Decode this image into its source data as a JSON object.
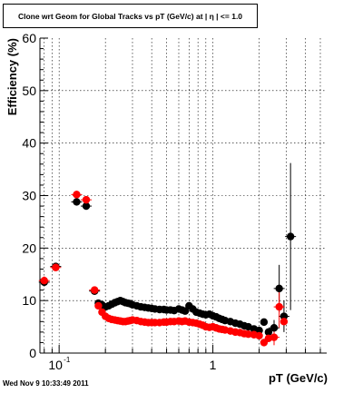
{
  "chart_data": {
    "type": "scatter",
    "title": "Clone wrt Geom for Global Tracks vs pT (GeV/c) at |  η | <= 1.0",
    "xlabel": "pT (GeV/c)",
    "ylabel": "Efficiency (%)",
    "xscale": "log",
    "xlim": [
      0.075,
      5.5
    ],
    "ylim": [
      0,
      60
    ],
    "yticks": [
      0,
      10,
      20,
      30,
      40,
      50,
      60
    ],
    "xtick_labels": [
      {
        "value": 0.1,
        "label": "10",
        "exp": "-1"
      },
      {
        "value": 1,
        "label": "1",
        "exp": ""
      }
    ],
    "grid": true,
    "series": [
      {
        "color": "#000000",
        "points": [
          [
            0.08,
            13.5
          ],
          [
            0.095,
            16.5
          ],
          [
            0.13,
            28.8
          ],
          [
            0.15,
            28.0
          ],
          [
            0.17,
            11.8
          ],
          [
            0.18,
            9.5
          ],
          [
            0.19,
            9.2
          ],
          [
            0.2,
            8.8
          ],
          [
            0.21,
            9.0
          ],
          [
            0.22,
            9.3
          ],
          [
            0.23,
            9.6
          ],
          [
            0.24,
            9.8
          ],
          [
            0.25,
            10.0
          ],
          [
            0.26,
            9.8
          ],
          [
            0.27,
            9.6
          ],
          [
            0.28,
            9.5
          ],
          [
            0.29,
            9.4
          ],
          [
            0.3,
            9.2
          ],
          [
            0.32,
            9.0
          ],
          [
            0.34,
            8.8
          ],
          [
            0.36,
            8.7
          ],
          [
            0.38,
            8.6
          ],
          [
            0.4,
            8.5
          ],
          [
            0.42,
            8.4
          ],
          [
            0.45,
            8.3
          ],
          [
            0.48,
            8.3
          ],
          [
            0.5,
            8.2
          ],
          [
            0.53,
            8.2
          ],
          [
            0.56,
            8.1
          ],
          [
            0.6,
            8.4
          ],
          [
            0.63,
            8.2
          ],
          [
            0.66,
            8.0
          ],
          [
            0.7,
            9.0
          ],
          [
            0.74,
            8.4
          ],
          [
            0.78,
            7.8
          ],
          [
            0.82,
            7.6
          ],
          [
            0.86,
            7.4
          ],
          [
            0.9,
            7.3
          ],
          [
            0.95,
            7.4
          ],
          [
            1.0,
            7.1
          ],
          [
            1.05,
            6.9
          ],
          [
            1.1,
            6.6
          ],
          [
            1.15,
            6.4
          ],
          [
            1.2,
            6.2
          ],
          [
            1.3,
            6.0
          ],
          [
            1.4,
            5.7
          ],
          [
            1.5,
            5.5
          ],
          [
            1.6,
            5.2
          ],
          [
            1.7,
            5.0
          ],
          [
            1.85,
            4.6
          ],
          [
            2.0,
            4.3
          ],
          [
            2.15,
            5.9
          ],
          [
            2.3,
            4.0
          ],
          [
            2.5,
            4.8
          ],
          [
            2.7,
            12.3
          ],
          [
            2.9,
            7.0
          ],
          [
            3.2,
            22.2
          ]
        ],
        "errors": [
          [
            0.08,
            0.8
          ],
          [
            0.095,
            0.6
          ],
          [
            0.13,
            0.7
          ],
          [
            0.15,
            0.7
          ],
          [
            0.17,
            0.6
          ],
          [
            2.5,
            1.5
          ],
          [
            2.7,
            4.5
          ],
          [
            2.9,
            3.0
          ],
          [
            3.2,
            14.0
          ]
        ]
      },
      {
        "color": "#ff0000",
        "points": [
          [
            0.08,
            13.8
          ],
          [
            0.095,
            16.3
          ],
          [
            0.13,
            30.2
          ],
          [
            0.15,
            29.2
          ],
          [
            0.17,
            12.0
          ],
          [
            0.18,
            9.0
          ],
          [
            0.19,
            7.8
          ],
          [
            0.2,
            7.0
          ],
          [
            0.21,
            6.6
          ],
          [
            0.22,
            6.4
          ],
          [
            0.23,
            6.3
          ],
          [
            0.24,
            6.2
          ],
          [
            0.25,
            6.1
          ],
          [
            0.26,
            6.0
          ],
          [
            0.27,
            6.0
          ],
          [
            0.28,
            6.1
          ],
          [
            0.29,
            6.2
          ],
          [
            0.3,
            6.3
          ],
          [
            0.32,
            6.2
          ],
          [
            0.34,
            6.0
          ],
          [
            0.36,
            5.9
          ],
          [
            0.38,
            5.8
          ],
          [
            0.4,
            5.8
          ],
          [
            0.42,
            5.8
          ],
          [
            0.45,
            5.8
          ],
          [
            0.48,
            5.9
          ],
          [
            0.5,
            5.9
          ],
          [
            0.53,
            6.0
          ],
          [
            0.56,
            6.0
          ],
          [
            0.6,
            6.1
          ],
          [
            0.63,
            6.0
          ],
          [
            0.66,
            6.1
          ],
          [
            0.7,
            5.9
          ],
          [
            0.74,
            5.8
          ],
          [
            0.78,
            5.7
          ],
          [
            0.82,
            5.5
          ],
          [
            0.86,
            5.3
          ],
          [
            0.9,
            5.0
          ],
          [
            0.95,
            4.9
          ],
          [
            1.0,
            5.0
          ],
          [
            1.05,
            4.8
          ],
          [
            1.1,
            4.6
          ],
          [
            1.15,
            4.5
          ],
          [
            1.2,
            4.4
          ],
          [
            1.3,
            4.2
          ],
          [
            1.4,
            4.0
          ],
          [
            1.5,
            3.9
          ],
          [
            1.6,
            3.7
          ],
          [
            1.7,
            3.6
          ],
          [
            1.85,
            3.5
          ],
          [
            2.0,
            3.3
          ],
          [
            2.15,
            2.0
          ],
          [
            2.3,
            2.8
          ],
          [
            2.5,
            3.0
          ],
          [
            2.7,
            8.8
          ],
          [
            2.9,
            6.0
          ]
        ],
        "errors": [
          [
            0.08,
            0.8
          ],
          [
            0.095,
            0.6
          ],
          [
            0.13,
            0.7
          ],
          [
            0.15,
            0.7
          ],
          [
            0.17,
            0.6
          ],
          [
            2.5,
            1.5
          ],
          [
            2.7,
            4.0
          ]
        ]
      }
    ]
  },
  "footer": {
    "timestamp": "Wed Nov  9 10:33:49 2011"
  }
}
